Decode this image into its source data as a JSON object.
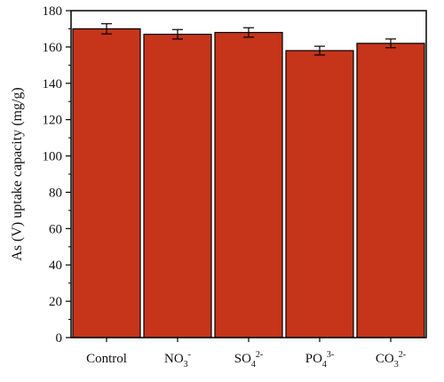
{
  "chart_data": {
    "type": "bar",
    "title": "",
    "xlabel": "",
    "ylabel": "As (V) uptake capacity (mg/g)",
    "ylim": [
      0,
      180
    ],
    "yticks": [
      0,
      20,
      40,
      60,
      80,
      100,
      120,
      140,
      160,
      180
    ],
    "categories": [
      {
        "main": "Control",
        "sub": "",
        "sup": ""
      },
      {
        "main": "NO",
        "sub": "3",
        "sup": "-"
      },
      {
        "main": "SO",
        "sub": "4",
        "sup": "2-"
      },
      {
        "main": "PO",
        "sub": "4",
        "sup": "3-"
      },
      {
        "main": "CO",
        "sub": "3",
        "sup": "2-"
      }
    ],
    "values": [
      170,
      167,
      168,
      158,
      162
    ],
    "errors": [
      2.8,
      2.6,
      2.6,
      2.4,
      2.4
    ],
    "bar_color": "#c6341a",
    "bar_edge_color": "#000000",
    "grid": false,
    "legend": "none"
  }
}
